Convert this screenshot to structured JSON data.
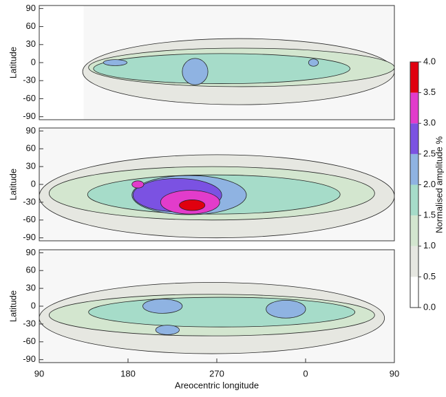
{
  "chart_data": [
    {
      "type": "contour",
      "ylabel": "Latitude",
      "xlim": [
        90,
        450
      ],
      "ylim": [
        -95,
        95
      ],
      "yticks": [
        -90,
        -60,
        -30,
        0,
        30,
        60,
        90
      ],
      "data_lon_start": 135,
      "regions": [
        {
          "level": 0.5,
          "lon": 292,
          "lat": -15,
          "rlon": 158,
          "rlat": 55
        },
        {
          "level": 1.0,
          "lon": 295,
          "lat": -8,
          "rlon": 155,
          "rlat": 32
        },
        {
          "level": 1.5,
          "lon": 275,
          "lat": -10,
          "rlon": 130,
          "rlat": 25
        },
        {
          "level": 2.0,
          "lon": 167,
          "lat": 0,
          "rlon": 12,
          "rlat": 5
        },
        {
          "level": 2.0,
          "lon": 248,
          "lat": -15,
          "rlon": 13,
          "rlat": 22
        },
        {
          "level": 2.0,
          "lon": 368,
          "lat": 0,
          "rlon": 5,
          "rlat": 6
        }
      ]
    },
    {
      "type": "contour",
      "ylabel": "Latitude",
      "xlim": [
        90,
        450
      ],
      "ylim": [
        -95,
        95
      ],
      "yticks": [
        -90,
        -60,
        -30,
        0,
        30,
        60,
        90
      ],
      "data_lon_start": 90,
      "regions": [
        {
          "level": 0.5,
          "lon": 270,
          "lat": -20,
          "rlon": 180,
          "rlat": 70
        },
        {
          "level": 1.0,
          "lon": 265,
          "lat": -15,
          "rlon": 165,
          "rlat": 45
        },
        {
          "level": 1.5,
          "lon": 267,
          "lat": -17,
          "rlon": 128,
          "rlat": 33
        },
        {
          "level": 2.0,
          "lon": 242,
          "lat": -18,
          "rlon": 58,
          "rlat": 33
        },
        {
          "level": 2.5,
          "lon": 230,
          "lat": -18,
          "rlon": 45,
          "rlat": 28
        },
        {
          "level": 3.0,
          "lon": 243,
          "lat": -30,
          "rlon": 30,
          "rlat": 20
        },
        {
          "level": 3.0,
          "lon": 190,
          "lat": 0,
          "rlon": 6,
          "rlat": 6
        },
        {
          "level": 3.5,
          "lon": 245,
          "lat": -35,
          "rlon": 13,
          "rlat": 9
        }
      ]
    },
    {
      "type": "contour",
      "ylabel": "Latitude",
      "xlabel": "Areocentric longitude",
      "xlim": [
        90,
        450
      ],
      "ylim": [
        -95,
        95
      ],
      "yticks": [
        -90,
        -60,
        -30,
        0,
        30,
        60,
        90
      ],
      "data_lon_start": 90,
      "xticks": [
        90,
        180,
        270,
        {
          "value": 360,
          "label": "0"
        },
        {
          "value": 450,
          "label": "90"
        }
      ],
      "regions": [
        {
          "level": 0.5,
          "lon": 265,
          "lat": -20,
          "rlon": 175,
          "rlat": 60
        },
        {
          "level": 1.0,
          "lon": 265,
          "lat": -15,
          "rlon": 165,
          "rlat": 35
        },
        {
          "level": 1.5,
          "lon": 275,
          "lat": -10,
          "rlon": 135,
          "rlat": 25
        },
        {
          "level": 2.0,
          "lon": 215,
          "lat": 0,
          "rlon": 20,
          "rlat": 12
        },
        {
          "level": 2.0,
          "lon": 220,
          "lat": -40,
          "rlon": 12,
          "rlat": 8
        },
        {
          "level": 2.0,
          "lon": 340,
          "lat": -5,
          "rlon": 20,
          "rlat": 15
        }
      ]
    }
  ],
  "colorbar": {
    "label": "Normalised amplitude %",
    "ticks": [
      {
        "value": 0,
        "label": "0.0"
      },
      {
        "value": 0.5,
        "label": "0.5"
      },
      {
        "value": 1,
        "label": "1.0"
      },
      {
        "value": 1.5,
        "label": "1.5"
      },
      {
        "value": 2,
        "label": "2.0"
      },
      {
        "value": 2.5,
        "label": "2.5"
      },
      {
        "value": 3,
        "label": "3.0"
      },
      {
        "value": 3.5,
        "label": "3.5"
      },
      {
        "value": 4,
        "label": "4.0"
      }
    ],
    "colors": [
      "#ffffff",
      "#e6e7e1",
      "#d3e6cf",
      "#a6dcc9",
      "#8fb3e2",
      "#7b52e2",
      "#e23ccb",
      "#e0000f"
    ]
  }
}
